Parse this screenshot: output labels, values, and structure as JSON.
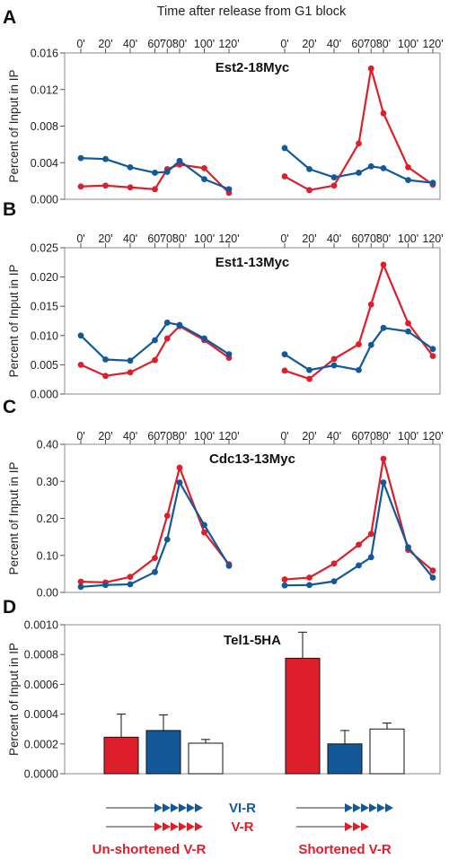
{
  "figure_title": "Time after release from G1 block",
  "colors": {
    "red": "#dd1f2b",
    "blue": "#13599a",
    "arrow_gray": "#999999"
  },
  "chart_data": [
    {
      "panel": "A",
      "type": "line",
      "title": "Est2-18Myc",
      "ylabel": "Percent of Input in IP",
      "ylim": [
        0,
        0.016
      ],
      "yticks": [
        0,
        0.004,
        0.008,
        0.012,
        0.016
      ],
      "ytick_labels": [
        "0.000",
        "0.004",
        "0.008",
        "0.012",
        "0.016"
      ],
      "x": [
        0,
        20,
        40,
        60,
        70,
        80,
        100,
        120
      ],
      "xtick_labels": [
        "0'",
        "20'",
        "40'",
        "60'",
        "70'",
        "80'",
        "100'",
        "120'"
      ],
      "groups": [
        {
          "series": [
            {
              "color": "red",
              "values": [
                0.0014,
                0.0015,
                0.0013,
                0.0011,
                0.0033,
                0.0038,
                0.0034,
                0.0007
              ]
            },
            {
              "color": "blue",
              "values": [
                0.0045,
                0.0044,
                0.0035,
                0.0029,
                0.003,
                0.0042,
                0.0022,
                0.0011
              ]
            }
          ]
        },
        {
          "series": [
            {
              "color": "red",
              "values": [
                0.0025,
                0.001,
                0.0015,
                0.0061,
                0.0143,
                0.0094,
                0.0035,
                0.0016
              ]
            },
            {
              "color": "blue",
              "values": [
                0.0056,
                0.0033,
                0.0024,
                0.0029,
                0.0036,
                0.0034,
                0.0021,
                0.0018
              ]
            }
          ]
        }
      ]
    },
    {
      "panel": "B",
      "type": "line",
      "title": "Est1-13Myc",
      "ylabel": "Percent of Input in IP",
      "ylim": [
        0,
        0.025
      ],
      "yticks": [
        0,
        0.005,
        0.01,
        0.015,
        0.02,
        0.025
      ],
      "ytick_labels": [
        "0.000",
        "0.005",
        "0.010",
        "0.015",
        "0.020",
        "0.025"
      ],
      "x": [
        0,
        20,
        40,
        60,
        70,
        80,
        100,
        120
      ],
      "xtick_labels": [
        "0'",
        "20'",
        "40'",
        "60'",
        "70'",
        "80'",
        "100'",
        "120'"
      ],
      "groups": [
        {
          "series": [
            {
              "color": "red",
              "values": [
                0.005,
                0.0031,
                0.0037,
                0.0058,
                0.0095,
                0.0116,
                0.0092,
                0.0062
              ]
            },
            {
              "color": "blue",
              "values": [
                0.01,
                0.0059,
                0.0057,
                0.0092,
                0.0122,
                0.0118,
                0.0095,
                0.0068
              ]
            }
          ]
        },
        {
          "series": [
            {
              "color": "red",
              "values": [
                0.004,
                0.0026,
                0.006,
                0.0085,
                0.0153,
                0.0221,
                0.0121,
                0.0065
              ]
            },
            {
              "color": "blue",
              "values": [
                0.0068,
                0.0041,
                0.0049,
                0.0041,
                0.0084,
                0.0113,
                0.0107,
                0.0077
              ]
            }
          ]
        }
      ]
    },
    {
      "panel": "C",
      "type": "line",
      "title": "Cdc13-13Myc",
      "ylabel": "Percent of Input in IP",
      "ylim": [
        0,
        0.4
      ],
      "yticks": [
        0,
        0.1,
        0.2,
        0.3,
        0.4
      ],
      "ytick_labels": [
        "0.00",
        "0.10",
        "0.20",
        "0.30",
        "0.40"
      ],
      "x": [
        0,
        20,
        40,
        60,
        70,
        80,
        100,
        120
      ],
      "xtick_labels": [
        "0'",
        "20'",
        "40'",
        "60'",
        "70'",
        "80'",
        "100'",
        "120'"
      ],
      "groups": [
        {
          "series": [
            {
              "color": "red",
              "values": [
                0.029,
                0.027,
                0.042,
                0.093,
                0.207,
                0.337,
                0.162,
                0.076
              ]
            },
            {
              "color": "blue",
              "values": [
                0.015,
                0.02,
                0.022,
                0.055,
                0.143,
                0.297,
                0.182,
                0.072
              ]
            }
          ]
        },
        {
          "series": [
            {
              "color": "red",
              "values": [
                0.035,
                0.04,
                0.078,
                0.129,
                0.158,
                0.361,
                0.115,
                0.059
              ]
            },
            {
              "color": "blue",
              "values": [
                0.019,
                0.02,
                0.03,
                0.073,
                0.095,
                0.297,
                0.122,
                0.04
              ]
            }
          ]
        }
      ]
    },
    {
      "panel": "D",
      "type": "bar",
      "title": "Tel1-5HA",
      "ylabel": "Percent of Input in IP",
      "ylim": [
        0,
        0.001
      ],
      "yticks": [
        0,
        0.0002,
        0.0004,
        0.0006,
        0.0008,
        0.001
      ],
      "ytick_labels": [
        "0.0000",
        "0.0002",
        "0.0004",
        "0.0006",
        "0.0008",
        "0.0010"
      ],
      "groups": [
        {
          "bars": [
            {
              "color": "red",
              "value": 0.000245,
              "error": 0.000155
            },
            {
              "color": "blue",
              "value": 0.00029,
              "error": 0.000105
            },
            {
              "color": "white",
              "value": 0.000205,
              "error": 2.5e-05
            }
          ]
        },
        {
          "bars": [
            {
              "color": "red",
              "value": 0.000775,
              "error": 0.000175
            },
            {
              "color": "blue",
              "value": 0.0002,
              "error": 9e-05
            },
            {
              "color": "white",
              "value": 0.0003,
              "error": 4e-05
            }
          ]
        }
      ]
    }
  ],
  "legend": {
    "vi_r_label": "VI-R",
    "v_r_label": "V-R",
    "groups": [
      {
        "label": "Un-shortened V-R",
        "vi_r_arrowheads": 6,
        "v_r_arrowheads": 6
      },
      {
        "label": "Shortened V-R",
        "vi_r_arrowheads": 6,
        "v_r_arrowheads": 3
      }
    ]
  }
}
